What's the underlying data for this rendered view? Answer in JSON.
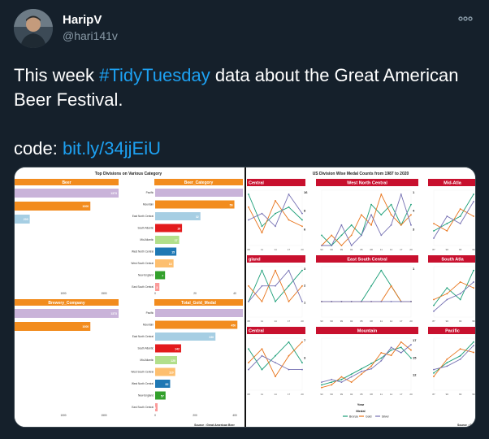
{
  "tweet": {
    "display_name": "HaripV",
    "handle": "@hari141v",
    "more_icon": "more-horizontal-icon",
    "text_before": "This week ",
    "hashtag": "#TidyTuesday",
    "text_after": " data about the Great American Beer Festival.",
    "code_label": "code: ",
    "code_link": "bit.ly/34jjEiU"
  },
  "colors": {
    "background": "#15202b",
    "accent": "#1da1f2",
    "muted": "#8899a6",
    "panel_orange": "#f28c1e",
    "panel_red": "#c8102e"
  },
  "media": {
    "left_title": "Top Divisions on Various Category",
    "right_title": "US Division Wise Medal Counts from 1987 to 2020",
    "left_source": "Source : Great American Beer",
    "right_source": "Source : Gre",
    "legend_title": "Medal",
    "legend_items": [
      "Bronze",
      "Gold",
      "Silver"
    ],
    "legend_colors": [
      "#1a9e77",
      "#e8741b",
      "#7570b3"
    ],
    "x_axis_label": "Year",
    "year_ticks": [
      "87",
      "90",
      "93",
      "96",
      "99",
      "02",
      "05",
      "08",
      "11",
      "14",
      "17",
      "20"
    ]
  },
  "chart_data": [
    {
      "type": "bar",
      "title": "Beer",
      "values": [
        1373,
        1000,
        200
      ],
      "bar_labels": [
        "1373",
        "1000",
        "200"
      ],
      "tick_labels": [
        "1000",
        "1500"
      ],
      "colors": [
        "#c9b3d9",
        "#f28c1e",
        "#a6cee3"
      ]
    },
    {
      "type": "bar",
      "title": "Beer_Category",
      "categories": [
        "Pacific",
        "Mountain",
        "East North Central",
        "South Atlantic",
        "Mid-Atlantic",
        "West North Central",
        "West South Central",
        "New England",
        "East South Central"
      ],
      "values": [
        62,
        56,
        32,
        19,
        17,
        15,
        13,
        7,
        3
      ],
      "bar_labels": [
        "",
        "56",
        "32",
        "19",
        "17",
        "15",
        "13",
        "7",
        "3"
      ],
      "tick_labels": [
        "0",
        "20",
        "40"
      ],
      "colors": [
        "#c9b3d9",
        "#f28c1e",
        "#a6cee3",
        "#e31a1c",
        "#b2df8a",
        "#1f78b4",
        "#fdbf6f",
        "#33a02c",
        "#fb9a99"
      ]
    },
    {
      "type": "bar",
      "title": "Brewery_Company",
      "values": [
        1373,
        1000
      ],
      "bar_labels": [
        "1373",
        "1000"
      ],
      "tick_labels": [
        "1000",
        "1500"
      ],
      "colors": [
        "#c9b3d9",
        "#f28c1e"
      ]
    },
    {
      "type": "bar",
      "title": "Total_Gold_Medal",
      "categories": [
        "Pacific",
        "Mountain",
        "East North Central",
        "South Atlantic",
        "Mid-Atlantic",
        "West South Central",
        "West North Central",
        "New England",
        "East South Central"
      ],
      "values": [
        480,
        450,
        330,
        142,
        120,
        110,
        82,
        57,
        13
      ],
      "bar_labels": [
        "",
        "450",
        "330",
        "142",
        "120",
        "110",
        "82",
        "57",
        "13"
      ],
      "tick_labels": [
        "0",
        "200",
        "400"
      ],
      "colors": [
        "#c9b3d9",
        "#f28c1e",
        "#a6cee3",
        "#e31a1c",
        "#b2df8a",
        "#fdbf6f",
        "#1f78b4",
        "#33a02c",
        "#fb9a99"
      ]
    },
    {
      "type": "line",
      "title": "Central",
      "x": [
        "08",
        "11",
        "14",
        "17",
        "20"
      ],
      "series": [
        {
          "name": "Bronze",
          "values": [
            16,
            6,
            10,
            12,
            8
          ]
        },
        {
          "name": "Gold",
          "values": [
            12,
            4,
            14,
            8,
            6
          ]
        },
        {
          "name": "Silver",
          "values": [
            8,
            10,
            6,
            16,
            10
          ]
        }
      ],
      "end_labels": [
        "16",
        "8",
        "6"
      ]
    },
    {
      "type": "line",
      "title": "West North Central",
      "x": [
        "93",
        "96",
        "99",
        "02",
        "05",
        "08",
        "11",
        "14",
        "17",
        "20"
      ],
      "series": [
        {
          "name": "Bronze",
          "values": [
            1,
            0,
            1,
            2,
            1,
            4,
            3,
            4,
            2,
            4
          ]
        },
        {
          "name": "Gold",
          "values": [
            0,
            1,
            0,
            1,
            3,
            2,
            5,
            3,
            2,
            3
          ]
        },
        {
          "name": "Silver",
          "values": [
            0,
            0,
            2,
            0,
            1,
            3,
            1,
            2,
            5,
            2
          ]
        }
      ],
      "end_labels": [
        "1",
        "4",
        "3"
      ]
    },
    {
      "type": "line",
      "title": "Mid-Atla",
      "x": [
        "87",
        "90",
        "93",
        "96"
      ],
      "series": [
        {
          "name": "Bronze",
          "values": [
            2,
            3,
            4,
            7
          ]
        },
        {
          "name": "Gold",
          "values": [
            3,
            2,
            5,
            4
          ]
        },
        {
          "name": "Silver",
          "values": [
            1,
            4,
            3,
            6
          ]
        }
      ],
      "end_labels": [
        "3",
        "2",
        "1"
      ]
    },
    {
      "type": "line",
      "title": "gland",
      "x": [
        "08",
        "11",
        "14",
        "17",
        "20"
      ],
      "series": [
        {
          "name": "Bronze",
          "values": [
            1,
            3,
            1,
            2,
            3
          ]
        },
        {
          "name": "Gold",
          "values": [
            2,
            1,
            3,
            1,
            2
          ]
        },
        {
          "name": "Silver",
          "values": [
            1,
            2,
            2,
            3,
            1
          ]
        }
      ],
      "end_labels": [
        "3",
        "2",
        "1"
      ]
    },
    {
      "type": "line",
      "title": "East South Central",
      "x": [
        "93",
        "96",
        "99",
        "02",
        "05",
        "08",
        "11",
        "14",
        "17",
        "20"
      ],
      "series": [
        {
          "name": "Bronze",
          "values": [
            1,
            1,
            1,
            1,
            1,
            2,
            3,
            2,
            1,
            1
          ]
        },
        {
          "name": "Gold",
          "values": [
            1,
            1,
            1,
            1,
            1,
            1,
            1,
            2,
            1,
            1
          ]
        },
        {
          "name": "Silver",
          "values": [
            1,
            1,
            1,
            1,
            1,
            1,
            1,
            1,
            1,
            1
          ]
        }
      ],
      "end_labels": [
        "1"
      ]
    },
    {
      "type": "line",
      "title": "South Atla",
      "x": [
        "87",
        "90",
        "93",
        "96"
      ],
      "series": [
        {
          "name": "Bronze",
          "values": [
            2,
            5,
            3,
            8
          ]
        },
        {
          "name": "Gold",
          "values": [
            3,
            4,
            6,
            5
          ]
        },
        {
          "name": "Silver",
          "values": [
            1,
            3,
            4,
            6
          ]
        }
      ],
      "end_labels": []
    },
    {
      "type": "line",
      "title": "Central",
      "x": [
        "08",
        "11",
        "14",
        "17",
        "20"
      ],
      "series": [
        {
          "name": "Bronze",
          "values": [
            6,
            3,
            5,
            7,
            4
          ]
        },
        {
          "name": "Gold",
          "values": [
            4,
            6,
            2,
            5,
            7
          ]
        },
        {
          "name": "Silver",
          "values": [
            3,
            5,
            4,
            3,
            3
          ]
        }
      ],
      "end_labels": [
        "7",
        "3"
      ]
    },
    {
      "type": "line",
      "title": "Mountain",
      "x": [
        "93",
        "96",
        "99",
        "02",
        "05",
        "08",
        "11",
        "14",
        "17",
        "20"
      ],
      "series": [
        {
          "name": "Bronze",
          "values": [
            2,
            3,
            4,
            6,
            8,
            10,
            12,
            15,
            16,
            12
          ]
        },
        {
          "name": "Gold",
          "values": [
            1,
            2,
            5,
            3,
            6,
            9,
            14,
            13,
            18,
            15
          ]
        },
        {
          "name": "Silver",
          "values": [
            3,
            4,
            3,
            5,
            7,
            8,
            11,
            16,
            14,
            17
          ]
        }
      ],
      "end_labels": [
        "17",
        "15",
        "12"
      ]
    },
    {
      "type": "line",
      "title": "Pacific",
      "x": [
        "87",
        "90",
        "93",
        "96"
      ],
      "series": [
        {
          "name": "Bronze",
          "values": [
            5,
            8,
            10,
            14
          ]
        },
        {
          "name": "Gold",
          "values": [
            4,
            9,
            12,
            11
          ]
        },
        {
          "name": "Silver",
          "values": [
            6,
            7,
            9,
            13
          ]
        }
      ],
      "end_labels": []
    }
  ]
}
